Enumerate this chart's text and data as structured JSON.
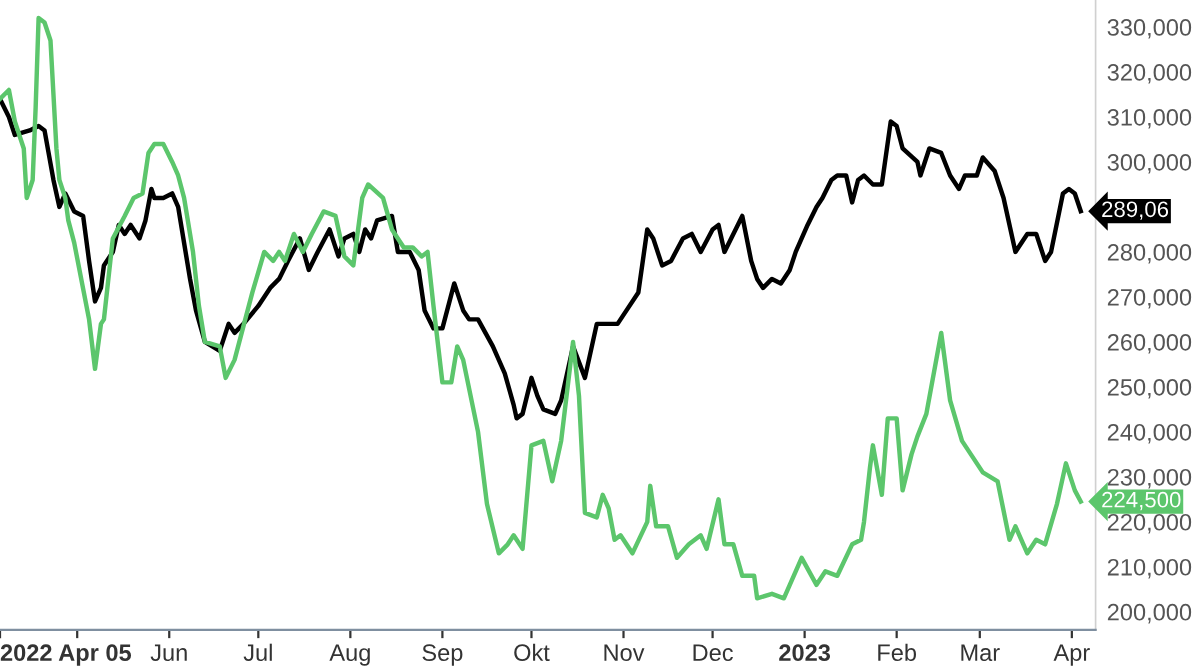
{
  "chart_data": {
    "type": "line",
    "xlim": [
      "2022-04-05",
      "2023-04-09"
    ],
    "xticks": [
      {
        "value": "2022-04-05",
        "label": "2022 Apr 05"
      },
      {
        "value": "2022-05-01",
        "label": null
      },
      {
        "value": "2022-06-01",
        "label": "Jun"
      },
      {
        "value": "2022-07-01",
        "label": "Jul"
      },
      {
        "value": "2022-08-01",
        "label": "Aug"
      },
      {
        "value": "2022-09-01",
        "label": "Sep"
      },
      {
        "value": "2022-10-01",
        "label": "Okt"
      },
      {
        "value": "2022-11-01",
        "label": "Nov"
      },
      {
        "value": "2022-12-01",
        "label": "Dec"
      },
      {
        "value": "2023-01-01",
        "label": "2023"
      },
      {
        "value": "2023-02-01",
        "label": "Feb"
      },
      {
        "value": "2023-03-01",
        "label": "Mar"
      },
      {
        "value": "2023-04-01",
        "label": "Apr"
      }
    ],
    "ylim": [
      196000,
      336000
    ],
    "yticks": [
      {
        "value": 200000,
        "label": "200,000"
      },
      {
        "value": 210000,
        "label": "210,000"
      },
      {
        "value": 220000,
        "label": "220,000"
      },
      {
        "value": 230000,
        "label": "230,000"
      },
      {
        "value": 240000,
        "label": "240,000"
      },
      {
        "value": 250000,
        "label": "250,000"
      },
      {
        "value": 260000,
        "label": "260,000"
      },
      {
        "value": 270000,
        "label": "270,000"
      },
      {
        "value": 280000,
        "label": "280,000"
      },
      {
        "value": 300000,
        "label": "300,000"
      },
      {
        "value": 310000,
        "label": "310,000"
      },
      {
        "value": 320000,
        "label": "320,000"
      },
      {
        "value": 330000,
        "label": "330,000"
      }
    ],
    "grid": false,
    "legend": false,
    "marker": "none",
    "line_style": "solid",
    "annotations": [
      {
        "text": "289,06",
        "x": "2023-04-04",
        "y": 289060
      },
      {
        "text": "224,500",
        "x": "2023-04-04",
        "y": 224500
      }
    ],
    "series": [
      {
        "color": "#000000",
        "x": [
          "2022-04-05",
          "2022-04-08",
          "2022-04-10",
          "2022-04-15",
          "2022-04-18",
          "2022-04-20",
          "2022-04-23",
          "2022-04-25",
          "2022-04-27",
          "2022-04-30",
          "2022-05-03",
          "2022-05-05",
          "2022-05-07",
          "2022-05-09",
          "2022-05-10",
          "2022-05-13",
          "2022-05-15",
          "2022-05-17",
          "2022-05-19",
          "2022-05-22",
          "2022-05-24",
          "2022-05-26",
          "2022-05-27",
          "2022-05-30",
          "2022-06-02",
          "2022-06-04",
          "2022-06-08",
          "2022-06-10",
          "2022-06-13",
          "2022-06-18",
          "2022-06-21",
          "2022-06-23",
          "2022-06-26",
          "2022-07-01",
          "2022-07-05",
          "2022-07-08",
          "2022-07-11",
          "2022-07-15",
          "2022-07-18",
          "2022-07-21",
          "2022-07-25",
          "2022-07-28",
          "2022-07-30",
          "2022-08-02",
          "2022-08-04",
          "2022-08-06",
          "2022-08-08",
          "2022-08-10",
          "2022-08-15",
          "2022-08-17",
          "2022-08-21",
          "2022-08-24",
          "2022-08-26",
          "2022-08-29",
          "2022-09-01",
          "2022-09-05",
          "2022-09-08",
          "2022-09-10",
          "2022-09-13",
          "2022-09-18",
          "2022-09-22",
          "2022-09-25",
          "2022-09-26",
          "2022-09-28",
          "2022-10-01",
          "2022-10-03",
          "2022-10-05",
          "2022-10-09",
          "2022-10-11",
          "2022-10-15",
          "2022-10-19",
          "2022-10-23",
          "2022-10-30",
          "2022-11-01",
          "2022-11-06",
          "2022-11-09",
          "2022-11-11",
          "2022-11-14",
          "2022-11-17",
          "2022-11-21",
          "2022-11-24",
          "2022-11-27",
          "2022-12-01",
          "2022-12-03",
          "2022-12-05",
          "2022-12-08",
          "2022-12-11",
          "2022-12-14",
          "2022-12-16",
          "2022-12-18",
          "2022-12-21",
          "2022-12-24",
          "2022-12-27",
          "2022-12-29",
          "2023-01-02",
          "2023-01-05",
          "2023-01-07",
          "2023-01-10",
          "2023-01-12",
          "2023-01-15",
          "2023-01-17",
          "2023-01-19",
          "2023-01-21",
          "2023-01-24",
          "2023-01-27",
          "2023-01-30",
          "2023-02-01",
          "2023-02-03",
          "2023-02-08",
          "2023-02-09",
          "2023-02-12",
          "2023-02-16",
          "2023-02-19",
          "2023-02-22",
          "2023-02-24",
          "2023-02-28",
          "2023-03-02",
          "2023-03-06",
          "2023-03-09",
          "2023-03-11",
          "2023-03-13",
          "2023-03-17",
          "2023-03-20",
          "2023-03-23",
          "2023-03-25",
          "2023-03-29",
          "2023-03-31",
          "2023-04-02",
          "2023-04-04"
        ],
        "values": [
          314000,
          310000,
          306000,
          307000,
          308000,
          307000,
          296000,
          290000,
          293000,
          289000,
          288000,
          278000,
          269000,
          272000,
          277000,
          280000,
          286000,
          284000,
          286000,
          283000,
          287000,
          294000,
          292000,
          292000,
          293000,
          290000,
          274000,
          267000,
          260000,
          258000,
          264000,
          262000,
          264000,
          268000,
          272000,
          274000,
          278000,
          283000,
          276000,
          280000,
          285000,
          279000,
          283000,
          284000,
          280000,
          285000,
          283000,
          287000,
          288000,
          280000,
          280000,
          276000,
          267000,
          263000,
          263000,
          273000,
          267000,
          265000,
          265000,
          259000,
          253000,
          246000,
          243000,
          244000,
          252000,
          248000,
          245000,
          244000,
          247000,
          259000,
          252000,
          264000,
          264000,
          266000,
          271000,
          285000,
          283000,
          277000,
          278000,
          283000,
          284000,
          280000,
          285000,
          286000,
          280000,
          284000,
          288000,
          278000,
          274000,
          272000,
          274000,
          273000,
          276000,
          280000,
          286000,
          290000,
          292000,
          296000,
          297000,
          297000,
          291000,
          296000,
          297000,
          295000,
          295000,
          309000,
          308000,
          303000,
          300000,
          297000,
          303000,
          302000,
          297000,
          294000,
          297000,
          297000,
          301000,
          298000,
          292000,
          286000,
          280000,
          284000,
          284000,
          278000,
          280000,
          293000,
          294000,
          293000,
          289060
        ]
      },
      {
        "color": "#5cc66c",
        "x": [
          "2022-04-05",
          "2022-04-08",
          "2022-04-10",
          "2022-04-13",
          "2022-04-14",
          "2022-04-16",
          "2022-04-17",
          "2022-04-18",
          "2022-04-20",
          "2022-04-22",
          "2022-04-24",
          "2022-04-25",
          "2022-04-27",
          "2022-04-28",
          "2022-04-30",
          "2022-05-05",
          "2022-05-07",
          "2022-05-09",
          "2022-05-10",
          "2022-05-13",
          "2022-05-17",
          "2022-05-20",
          "2022-05-23",
          "2022-05-25",
          "2022-05-27",
          "2022-05-30",
          "2022-06-02",
          "2022-06-04",
          "2022-06-06",
          "2022-06-09",
          "2022-06-11",
          "2022-06-13",
          "2022-06-18",
          "2022-06-20",
          "2022-06-23",
          "2022-06-29",
          "2022-07-03",
          "2022-07-06",
          "2022-07-08",
          "2022-07-10",
          "2022-07-13",
          "2022-07-16",
          "2022-07-19",
          "2022-07-23",
          "2022-07-27",
          "2022-07-30",
          "2022-08-02",
          "2022-08-05",
          "2022-08-07",
          "2022-08-12",
          "2022-08-15",
          "2022-08-19",
          "2022-08-22",
          "2022-08-25",
          "2022-08-27",
          "2022-08-29",
          "2022-09-01",
          "2022-09-04",
          "2022-09-06",
          "2022-09-08",
          "2022-09-13",
          "2022-09-16",
          "2022-09-20",
          "2022-09-23",
          "2022-09-25",
          "2022-09-28",
          "2022-10-01",
          "2022-10-05",
          "2022-10-08",
          "2022-10-11",
          "2022-10-15",
          "2022-10-17",
          "2022-10-19",
          "2022-10-23",
          "2022-10-25",
          "2022-10-27",
          "2022-10-29",
          "2022-10-31",
          "2022-11-04",
          "2022-11-09",
          "2022-11-10",
          "2022-11-12",
          "2022-11-16",
          "2022-11-19",
          "2022-11-23",
          "2022-11-27",
          "2022-11-29",
          "2022-12-03",
          "2022-12-05",
          "2022-12-08",
          "2022-12-11",
          "2022-12-15",
          "2022-12-16",
          "2022-12-21",
          "2022-12-25",
          "2022-12-27",
          "2022-12-31",
          "2023-01-05",
          "2023-01-08",
          "2023-01-12",
          "2023-01-17",
          "2023-01-20",
          "2023-01-21",
          "2023-01-23",
          "2023-01-24",
          "2023-01-27",
          "2023-01-29",
          "2023-02-01",
          "2023-02-03",
          "2023-02-06",
          "2023-02-08",
          "2023-02-11",
          "2023-02-16",
          "2023-02-19",
          "2023-02-23",
          "2023-03-02",
          "2023-03-07",
          "2023-03-11",
          "2023-03-13",
          "2023-03-17",
          "2023-03-20",
          "2023-03-23",
          "2023-03-27",
          "2023-03-30",
          "2023-04-02",
          "2023-04-04"
        ],
        "values": [
          314000,
          316000,
          309000,
          303000,
          292000,
          296000,
          312000,
          332000,
          331000,
          327000,
          303000,
          296000,
          292000,
          287000,
          282000,
          265000,
          254000,
          264000,
          265000,
          283000,
          288000,
          292000,
          293000,
          302000,
          304000,
          304000,
          300000,
          297000,
          292000,
          280000,
          268000,
          260000,
          259000,
          252000,
          256000,
          271000,
          280000,
          278000,
          280000,
          278000,
          284000,
          280000,
          284000,
          289000,
          288000,
          279000,
          277000,
          292000,
          295000,
          292000,
          285000,
          281000,
          281000,
          279000,
          280000,
          268000,
          251000,
          251000,
          259000,
          256000,
          240000,
          224000,
          213000,
          215000,
          217000,
          214000,
          237000,
          238000,
          229000,
          238000,
          260000,
          248000,
          222000,
          221000,
          226000,
          223000,
          216000,
          217000,
          213000,
          220000,
          228000,
          219000,
          219000,
          212000,
          215000,
          217000,
          214000,
          225000,
          215000,
          215000,
          208000,
          208000,
          203000,
          204000,
          203000,
          206000,
          212000,
          206000,
          209000,
          208000,
          215000,
          216000,
          220000,
          232000,
          237000,
          226000,
          243000,
          243000,
          227000,
          235000,
          239000,
          244000,
          262000,
          247000,
          238000,
          231000,
          229000,
          216000,
          219000,
          213000,
          216000,
          215000,
          224000,
          233000,
          227000,
          224500
        ]
      }
    ]
  }
}
